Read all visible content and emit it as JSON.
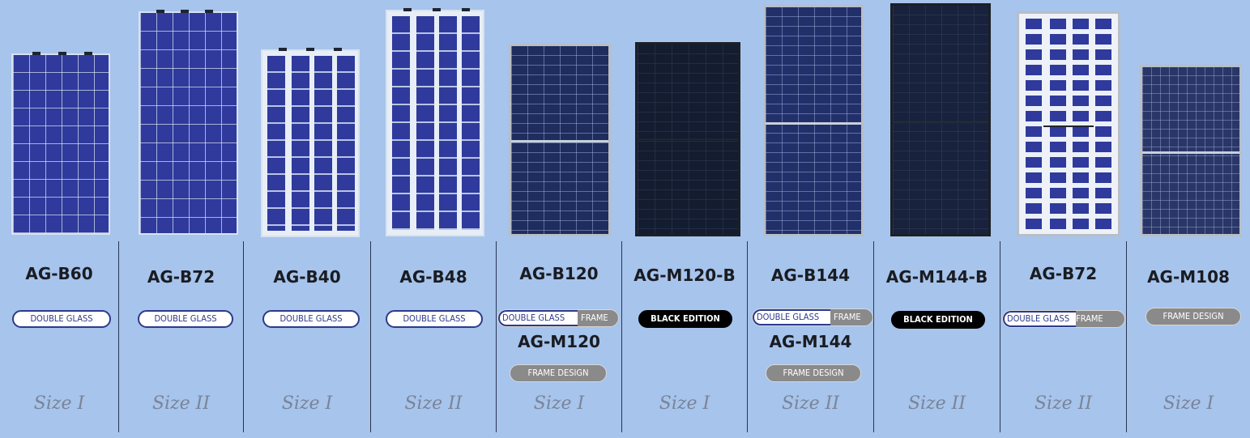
{
  "colors": {
    "background": "#a6c4ec",
    "cell_blue": "#2f3a9c",
    "cell_dark": "#1a2544",
    "cell_black": "#11182a",
    "double_glass_border": "#2d3a8c",
    "frame_design_fill": "#8a8a8a",
    "black_edition_fill": "#000000"
  },
  "products": [
    {
      "model": "AG-B60",
      "badges": [
        "DOUBLE GLASS"
      ],
      "size": "Size I",
      "panel_icon": "bifacial-60-cell-panel-icon"
    },
    {
      "model": "AG-B72",
      "badges": [
        "DOUBLE GLASS"
      ],
      "size": "Size II",
      "panel_icon": "bifacial-72-cell-panel-icon"
    },
    {
      "model": "AG-B40",
      "badges": [
        "DOUBLE GLASS"
      ],
      "size": "Size I",
      "panel_icon": "bifacial-40-cell-panel-icon"
    },
    {
      "model": "AG-B48",
      "badges": [
        "DOUBLE GLASS"
      ],
      "size": "Size II",
      "panel_icon": "bifacial-48-cell-panel-icon"
    },
    {
      "model": "AG-B120",
      "badges": [
        "DOUBLE GLASS",
        "FRAME"
      ],
      "model2": "AG-M120",
      "badge2": "FRAME DESIGN",
      "size": "Size I",
      "panel_icon": "framed-half-cell-120-panel-icon"
    },
    {
      "model": "AG-M120-B",
      "badges": [
        "BLACK EDITION"
      ],
      "size": "Size I",
      "panel_icon": "black-120-panel-icon"
    },
    {
      "model": "AG-B144",
      "badges": [
        "DOUBLE GLASS",
        "FRAME"
      ],
      "model2": "AG-M144",
      "badge2": "FRAME DESIGN",
      "size": "Size II",
      "panel_icon": "framed-half-cell-144-panel-icon"
    },
    {
      "model": "AG-M144-B",
      "badges": [
        "BLACK EDITION"
      ],
      "size": "Size II",
      "panel_icon": "black-144-panel-icon"
    },
    {
      "model": "AG-B72",
      "badges": [
        "DOUBLE GLASS",
        "FRAME"
      ],
      "size": "Size II",
      "panel_icon": "bifacial-72-framed-panel-icon"
    },
    {
      "model": "AG-M108",
      "badges": [
        "FRAME DESIGN"
      ],
      "size": "Size I",
      "panel_icon": "framed-108-panel-icon"
    }
  ]
}
